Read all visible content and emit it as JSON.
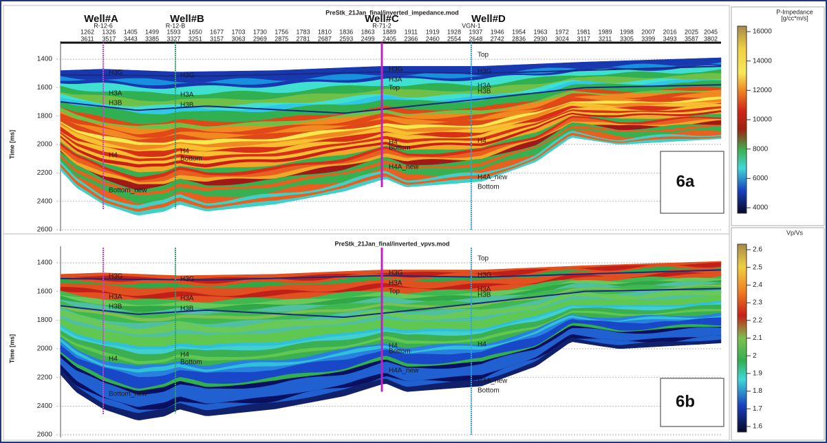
{
  "trace_numbers": {
    "inline": [
      1262,
      1326,
      1405,
      1499,
      1593,
      1650,
      1677,
      1703,
      1730,
      1756,
      1783,
      1810,
      1836,
      1863,
      1889,
      1911,
      1919,
      1928,
      1937,
      1946,
      1954,
      1963,
      1972,
      1981,
      1989,
      1998,
      2007,
      2016,
      2025,
      2045
    ],
    "crossline": [
      3611,
      3517,
      3443,
      3385,
      3327,
      3251,
      3157,
      3063,
      2969,
      2875,
      2781,
      2687,
      2593,
      2499,
      2405,
      2366,
      2460,
      2554,
      2648,
      2742,
      2836,
      2930,
      3024,
      3117,
      3211,
      3305,
      3399,
      3493,
      3587,
      3802
    ]
  },
  "wells": [
    {
      "name": "Well#A",
      "id": "R-12-6"
    },
    {
      "name": "Well#B",
      "id": "R-12-B"
    },
    {
      "name": "Well#C",
      "id": "R-71-2"
    },
    {
      "name": "Well#D",
      "id": "VGN-1"
    }
  ],
  "panels": [
    {
      "title": "PreStk_21Jan_final/inverted_impedance.mod",
      "label": "6a",
      "y_axis_title": "Time [ms]",
      "yticks": [
        1400,
        1600,
        1800,
        2000,
        2200,
        2400,
        2600
      ],
      "horizon_labels": [
        "H3G",
        "H3G",
        "H3G",
        "H3G",
        "H3A",
        "H3A",
        "H3A",
        "H3A",
        "H3B",
        "H3B",
        "H3B",
        "H4",
        "H4",
        "H4",
        "H4",
        "Bottom",
        "Bottom",
        "Bottom",
        "Top",
        "Top",
        "H4A_new",
        "H4A_new",
        "Bottom_new"
      ],
      "colorbar": {
        "title": "P-Impedance",
        "unit": "[g/cc*m/s]",
        "ticks": [
          16000,
          14000,
          12000,
          10000,
          8000,
          6000,
          4000
        ]
      }
    },
    {
      "title": "PreStk_21Jan_final/inverted_vpvs.mod",
      "label": "6b",
      "y_axis_title": "Time [ms]",
      "yticks": [
        1400,
        1600,
        1800,
        2000,
        2200,
        2400,
        2600
      ],
      "horizon_labels": [
        "H3G",
        "H3G",
        "H3G",
        "H3G",
        "H3A",
        "H3A",
        "H3A",
        "H3A",
        "H3B",
        "H3B",
        "H3B",
        "H4",
        "H4",
        "H4",
        "H4",
        "Bottom",
        "Bottom",
        "Bottom",
        "Top",
        "Top",
        "H4A_new",
        "H4A_new",
        "Bottom_new"
      ],
      "colorbar": {
        "title": "Vp/Vs",
        "ticks": [
          2.6,
          2.5,
          2.4,
          2.3,
          2.2,
          2.1,
          2,
          1.9,
          1.8,
          1.7,
          1.6
        ]
      }
    }
  ]
}
